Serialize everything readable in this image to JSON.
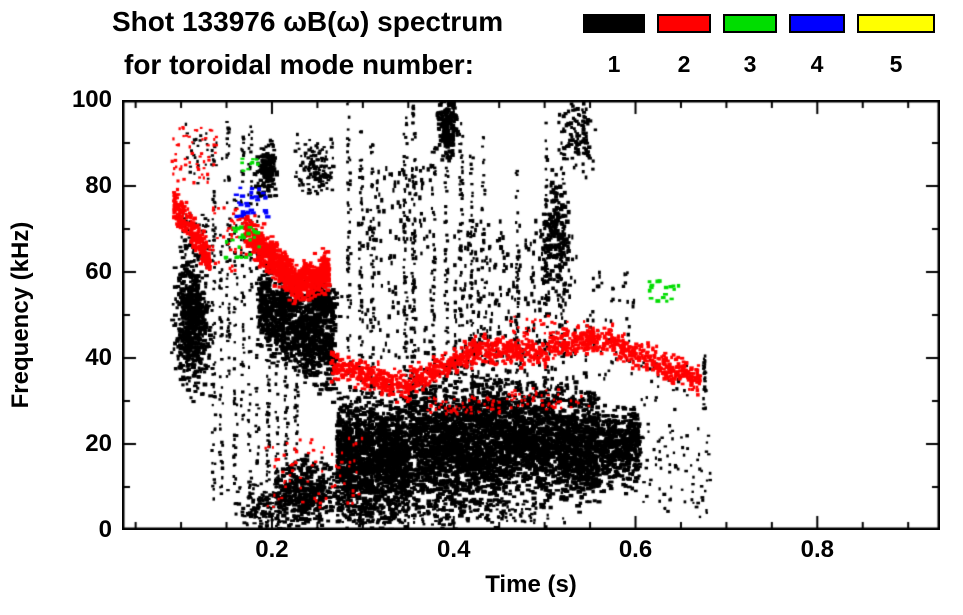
{
  "chart_data": {
    "type": "scatter",
    "title": "Shot 133976 ωB(ω) spectrum",
    "subtitle": "for toroidal mode number:",
    "xlabel": "Time (s)",
    "ylabel": "Frequency (kHz)",
    "xlim": [
      0.035,
      0.935
    ],
    "ylim": [
      0,
      100
    ],
    "xticks": {
      "major": [
        0.2,
        0.4,
        0.6,
        0.8
      ],
      "labels": [
        "0.2",
        "0.4",
        "0.6",
        "0.8"
      ],
      "minor_step": 0.05
    },
    "yticks": {
      "major": [
        0,
        20,
        40,
        60,
        80,
        100
      ],
      "labels": [
        "0",
        "20",
        "40",
        "60",
        "80",
        "100"
      ],
      "minor_step": 10
    },
    "grid": false,
    "frame_color": "#000000",
    "legend": {
      "position": "top-right",
      "entries": [
        {
          "label": "1",
          "color": "#000000"
        },
        {
          "label": "2",
          "color": "#ff0000"
        },
        {
          "label": "3",
          "color": "#00dd00"
        },
        {
          "label": "4",
          "color": "#0000ff"
        },
        {
          "label": "5",
          "color": "#ffff00"
        }
      ]
    },
    "series": [
      {
        "name": "n=1",
        "color": "#000000",
        "clusters": [
          {
            "type": "blob",
            "t0": 0.098,
            "t1": 0.128,
            "f0": 36,
            "f1": 62,
            "n": 650,
            "pw": 2.5,
            "pwv": 2.5,
            "ph": 2.5
          },
          {
            "type": "box",
            "t0": 0.1,
            "t1": 0.132,
            "f0": 64,
            "f1": 74,
            "n": 45,
            "pw": 2,
            "pwv": 2,
            "ph": 2
          },
          {
            "type": "box",
            "t0": 0.105,
            "t1": 0.15,
            "f0": 80,
            "f1": 95,
            "n": 30,
            "pw": 2,
            "pwv": 1.5,
            "ph": 2
          },
          {
            "type": "vline",
            "t0": 0.136,
            "f0": 5,
            "f1": 90,
            "n": 70
          },
          {
            "type": "vline",
            "t0": 0.144,
            "f0": 8,
            "f1": 70,
            "n": 45
          },
          {
            "type": "vline",
            "t0": 0.152,
            "f0": 35,
            "f1": 95,
            "n": 55
          },
          {
            "type": "vline",
            "t0": 0.16,
            "f0": 10,
            "f1": 80,
            "n": 45
          },
          {
            "type": "vline",
            "t0": 0.168,
            "f0": 25,
            "f1": 92,
            "n": 50
          },
          {
            "type": "vline",
            "t0": 0.176,
            "f0": 5,
            "f1": 95,
            "n": 55
          },
          {
            "type": "vline",
            "t0": 0.184,
            "f0": 15,
            "f1": 88,
            "n": 45
          },
          {
            "type": "blob",
            "t0": 0.185,
            "t1": 0.205,
            "f0": 79,
            "f1": 89,
            "n": 140,
            "pw": 3,
            "pwv": 2,
            "ph": 2.5
          },
          {
            "type": "band",
            "t0": 0.185,
            "t1": 0.27,
            "f0": 53,
            "f1": 42,
            "spread": 5.5,
            "n": 950,
            "pw": 3,
            "pwv": 3,
            "ph": 2.5
          },
          {
            "type": "blob",
            "t0": 0.24,
            "t1": 0.27,
            "f0": 50,
            "f1": 57,
            "n": 200,
            "pw": 3,
            "pwv": 2,
            "ph": 2.5
          },
          {
            "type": "vline",
            "t0": 0.196,
            "f0": 0,
            "f1": 55,
            "n": 55
          },
          {
            "type": "vline",
            "t0": 0.206,
            "f0": 0,
            "f1": 50,
            "n": 45
          },
          {
            "type": "vline",
            "t0": 0.216,
            "f0": 2,
            "f1": 45,
            "n": 40
          },
          {
            "type": "vline",
            "t0": 0.227,
            "f0": 5,
            "f1": 50,
            "n": 45
          },
          {
            "type": "blob",
            "t0": 0.165,
            "t1": 0.21,
            "f0": 1,
            "f1": 10,
            "n": 130,
            "pw": 2.5,
            "pwv": 2,
            "ph": 2
          },
          {
            "type": "blob",
            "t0": 0.208,
            "t1": 0.268,
            "f0": 2,
            "f1": 15,
            "n": 380,
            "pw": 3,
            "pwv": 2.5,
            "ph": 2.5
          },
          {
            "type": "box",
            "t0": 0.225,
            "t1": 0.268,
            "f0": 78,
            "f1": 92,
            "n": 55,
            "pw": 2,
            "pwv": 2,
            "ph": 2
          },
          {
            "type": "blob",
            "t0": 0.236,
            "t1": 0.262,
            "f0": 79,
            "f1": 88,
            "n": 80,
            "pw": 2.5,
            "pwv": 2,
            "ph": 2
          },
          {
            "type": "band",
            "t0": 0.272,
            "t1": 0.35,
            "f0": 17,
            "f1": 16,
            "spread": 7,
            "n": 1500,
            "pw": 3,
            "pwv": 3,
            "ph": 2.5
          },
          {
            "type": "band",
            "t0": 0.35,
            "t1": 0.46,
            "f0": 19,
            "f1": 20,
            "spread": 8,
            "n": 1900,
            "pw": 3,
            "pwv": 3,
            "ph": 2.5
          },
          {
            "type": "band",
            "t0": 0.46,
            "t1": 0.56,
            "f0": 21,
            "f1": 19,
            "spread": 6.5,
            "n": 1500,
            "pw": 3,
            "pwv": 3,
            "ph": 2.5
          },
          {
            "type": "band",
            "t0": 0.56,
            "t1": 0.605,
            "f0": 19,
            "f1": 19,
            "spread": 4.5,
            "n": 480,
            "pw": 3,
            "pwv": 2.5,
            "ph": 2.5
          },
          {
            "type": "box",
            "t0": 0.275,
            "t1": 0.5,
            "f0": 1,
            "f1": 7,
            "n": 180,
            "pw": 2,
            "pwv": 2,
            "ph": 2
          },
          {
            "type": "box",
            "t0": 0.295,
            "t1": 0.38,
            "f0": 40,
            "f1": 85,
            "n": 160,
            "pw": 2,
            "pwv": 1.5,
            "ph": 3.5
          },
          {
            "type": "box",
            "t0": 0.4,
            "t1": 0.535,
            "f0": 30,
            "f1": 72,
            "n": 330,
            "pw": 2,
            "pwv": 1.5,
            "ph": 3.5
          },
          {
            "type": "vline",
            "t0": 0.285,
            "f0": 0,
            "f1": 100,
            "n": 85
          },
          {
            "type": "vline",
            "t0": 0.298,
            "f0": 0,
            "f1": 97,
            "n": 80
          },
          {
            "type": "vline",
            "t0": 0.31,
            "f0": 30,
            "f1": 95,
            "n": 45
          },
          {
            "type": "vline",
            "t0": 0.347,
            "f0": 28,
            "f1": 96,
            "n": 60
          },
          {
            "type": "vline",
            "t0": 0.356,
            "f0": 35,
            "f1": 100,
            "n": 65
          },
          {
            "type": "vline",
            "t0": 0.378,
            "f0": 30,
            "f1": 92,
            "n": 50
          },
          {
            "type": "vline",
            "t0": 0.392,
            "f0": 0,
            "f1": 100,
            "n": 95
          },
          {
            "type": "blob",
            "t0": 0.383,
            "t1": 0.402,
            "f0": 88,
            "f1": 100,
            "n": 160,
            "pw": 3,
            "pwv": 2.5,
            "ph": 3
          },
          {
            "type": "vline",
            "t0": 0.408,
            "f0": 30,
            "f1": 95,
            "n": 55
          },
          {
            "type": "vline",
            "t0": 0.42,
            "f0": 35,
            "f1": 88,
            "n": 45
          },
          {
            "type": "vline",
            "t0": 0.433,
            "f0": 38,
            "f1": 92,
            "n": 40
          },
          {
            "type": "vline",
            "t0": 0.47,
            "f0": 28,
            "f1": 88,
            "n": 50
          },
          {
            "type": "vline",
            "t0": 0.502,
            "f0": 0,
            "f1": 95,
            "n": 85
          },
          {
            "type": "blob",
            "t0": 0.498,
            "t1": 0.525,
            "f0": 56,
            "f1": 80,
            "n": 160,
            "pw": 3,
            "pwv": 2,
            "ph": 3
          },
          {
            "type": "vline",
            "t0": 0.52,
            "f0": 0,
            "f1": 92,
            "n": 60
          },
          {
            "type": "blob",
            "t0": 0.52,
            "t1": 0.552,
            "f0": 85,
            "f1": 99,
            "n": 110,
            "pw": 2.5,
            "pwv": 2,
            "ph": 2.5
          },
          {
            "type": "box",
            "t0": 0.545,
            "t1": 0.6,
            "f0": 35,
            "f1": 60,
            "n": 60,
            "pw": 2,
            "pwv": 1.5,
            "ph": 2.5
          },
          {
            "type": "box",
            "t0": 0.6,
            "t1": 0.685,
            "f0": 3,
            "f1": 25,
            "n": 80,
            "pw": 2,
            "pwv": 2,
            "ph": 2
          },
          {
            "type": "box",
            "t0": 0.6,
            "t1": 0.66,
            "f0": 28,
            "f1": 40,
            "n": 25,
            "pw": 2,
            "pwv": 1.5,
            "ph": 2
          },
          {
            "type": "vline",
            "t0": 0.676,
            "f0": 28,
            "f1": 42,
            "n": 28
          }
        ]
      },
      {
        "name": "n=2",
        "color": "#ff0000",
        "clusters": [
          {
            "type": "band",
            "t0": 0.092,
            "t1": 0.132,
            "f0": 76,
            "f1": 63,
            "spread": 2.2,
            "n": 260,
            "pw": 2.5,
            "pwv": 2,
            "ph": 2.5
          },
          {
            "type": "box",
            "t0": 0.09,
            "t1": 0.14,
            "f0": 80,
            "f1": 94,
            "n": 55,
            "pw": 2,
            "pwv": 1.5,
            "ph": 2
          },
          {
            "type": "box",
            "t0": 0.135,
            "t1": 0.168,
            "f0": 60,
            "f1": 75,
            "n": 40,
            "pw": 2,
            "pwv": 1.5,
            "ph": 2
          },
          {
            "type": "band",
            "t0": 0.17,
            "t1": 0.228,
            "f0": 70,
            "f1": 57,
            "spread": 2.4,
            "n": 520,
            "pw": 3,
            "pwv": 2.5,
            "ph": 2.5
          },
          {
            "type": "band",
            "t0": 0.228,
            "t1": 0.263,
            "f0": 57,
            "f1": 60,
            "spread": 2.4,
            "n": 330,
            "pw": 3,
            "pwv": 2.5,
            "ph": 2.5
          },
          {
            "type": "band",
            "t0": 0.265,
            "t1": 0.35,
            "f0": 38.5,
            "f1": 33,
            "spread": 1.7,
            "n": 300,
            "pw": 2.5,
            "pwv": 2,
            "ph": 2.5
          },
          {
            "type": "band",
            "t0": 0.35,
            "t1": 0.43,
            "f0": 34,
            "f1": 42,
            "spread": 1.7,
            "n": 300,
            "pw": 2.5,
            "pwv": 2,
            "ph": 2.5
          },
          {
            "type": "band",
            "t0": 0.43,
            "t1": 0.505,
            "f0": 42,
            "f1": 41,
            "spread": 1.7,
            "n": 230,
            "pw": 2.5,
            "pwv": 2,
            "ph": 2.5
          },
          {
            "type": "band",
            "t0": 0.505,
            "t1": 0.575,
            "f0": 43.5,
            "f1": 44,
            "spread": 1.7,
            "n": 230,
            "pw": 2.5,
            "pwv": 2,
            "ph": 2.5
          },
          {
            "type": "band",
            "t0": 0.575,
            "t1": 0.672,
            "f0": 43,
            "f1": 35,
            "spread": 1.7,
            "n": 300,
            "pw": 2.5,
            "pwv": 2,
            "ph": 2.5
          },
          {
            "type": "box",
            "t0": 0.185,
            "t1": 0.3,
            "f0": 5,
            "f1": 22,
            "n": 70,
            "pw": 2,
            "pwv": 1.5,
            "ph": 2
          },
          {
            "type": "box",
            "t0": 0.37,
            "t1": 0.46,
            "f0": 27,
            "f1": 31,
            "n": 55,
            "pw": 2,
            "pwv": 1.5,
            "ph": 2
          },
          {
            "type": "box",
            "t0": 0.46,
            "t1": 0.55,
            "f0": 28,
            "f1": 33,
            "n": 45,
            "pw": 2,
            "pwv": 1.5,
            "ph": 2
          },
          {
            "type": "box",
            "t0": 0.46,
            "t1": 0.545,
            "f0": 45,
            "f1": 50,
            "n": 35,
            "pw": 2,
            "pwv": 1.5,
            "ph": 2
          }
        ]
      },
      {
        "name": "n=3",
        "color": "#00dd00",
        "clusters": [
          {
            "type": "box",
            "t0": 0.148,
            "t1": 0.186,
            "f0": 63,
            "f1": 71,
            "n": 26,
            "pw": 3,
            "pwv": 2,
            "ph": 2.5
          },
          {
            "type": "box",
            "t0": 0.166,
            "t1": 0.186,
            "f0": 83,
            "f1": 87,
            "n": 10,
            "pw": 2.5,
            "pwv": 1.5,
            "ph": 2
          },
          {
            "type": "box",
            "t0": 0.615,
            "t1": 0.648,
            "f0": 53,
            "f1": 58,
            "n": 18,
            "pw": 3,
            "pwv": 2,
            "ph": 2.5
          }
        ]
      },
      {
        "name": "n=4",
        "color": "#0000ff",
        "clusters": [
          {
            "type": "box",
            "t0": 0.158,
            "t1": 0.196,
            "f0": 72,
            "f1": 80,
            "n": 26,
            "pw": 3.5,
            "pwv": 2,
            "ph": 2.5
          }
        ]
      },
      {
        "name": "n=5",
        "color": "#ffff00",
        "clusters": []
      }
    ]
  }
}
